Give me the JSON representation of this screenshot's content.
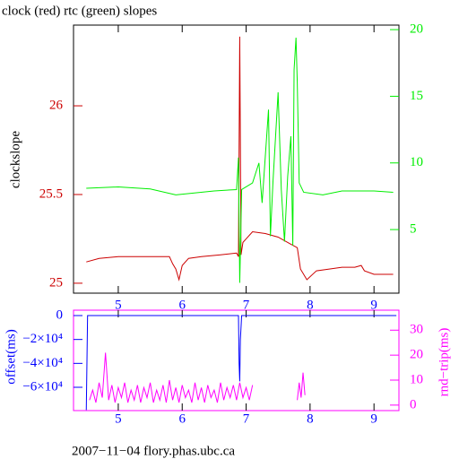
{
  "chart_data": [
    {
      "type": "line",
      "title": "clock (red) rtc (green) slopes",
      "ylabel": "clockslope",
      "xlim": [
        4.3,
        9.39
      ],
      "xticks": [
        5,
        6,
        7,
        8,
        9
      ],
      "ylim": [
        24.944,
        26.455
      ],
      "yticks": [
        25,
        25.5,
        26
      ],
      "y2lim": [
        0.23,
        20.34
      ],
      "y2ticks": [
        5,
        10,
        15,
        20
      ],
      "series": [
        {
          "name": "clock",
          "color": "#cc0000",
          "x": [
            4.5,
            4.7,
            5.0,
            5.5,
            5.8,
            5.85,
            5.9,
            5.95,
            6.0,
            6.1,
            6.3,
            6.6,
            6.85,
            6.88,
            6.9,
            6.92,
            6.95,
            7.0,
            7.1,
            7.3,
            7.5,
            7.7,
            7.8,
            7.85,
            7.95,
            8.1,
            8.3,
            8.5,
            8.7,
            8.8,
            8.85,
            9.0,
            9.3
          ],
          "values": [
            25.12,
            25.14,
            25.15,
            25.15,
            25.15,
            25.11,
            25.08,
            25.02,
            25.1,
            25.14,
            25.15,
            25.16,
            25.17,
            25.15,
            26.39,
            25.16,
            25.23,
            25.25,
            25.29,
            25.28,
            25.26,
            25.22,
            25.2,
            25.08,
            25.02,
            25.07,
            25.08,
            25.09,
            25.09,
            25.1,
            25.07,
            25.05,
            25.05
          ]
        },
        {
          "name": "rtc",
          "color": "#00ee00",
          "axis": "y2",
          "x": [
            4.5,
            5.0,
            5.5,
            5.9,
            6.5,
            6.85,
            6.88,
            6.9,
            6.93,
            7.1,
            7.2,
            7.25,
            7.35,
            7.38,
            7.42,
            7.5,
            7.55,
            7.6,
            7.65,
            7.7,
            7.73,
            7.75,
            7.78,
            7.8,
            7.83,
            7.9,
            8.2,
            8.5,
            9.0,
            9.3
          ],
          "values": [
            8.1,
            8.2,
            8.05,
            7.6,
            7.9,
            8.0,
            10.4,
            1.0,
            8.0,
            8.5,
            10.0,
            7.0,
            14.0,
            4.5,
            8.6,
            15.3,
            8.0,
            4.1,
            9.0,
            12.0,
            3.8,
            17.0,
            19.4,
            16.0,
            8.5,
            7.8,
            7.6,
            7.9,
            7.9,
            7.8
          ]
        }
      ]
    },
    {
      "type": "line",
      "ylabel": "offset(ms)",
      "y2label": "rnd−trip(ms)",
      "xlim": [
        4.3,
        9.39
      ],
      "xticks": [
        5,
        6,
        7,
        8,
        9
      ],
      "ylim": [
        -79500,
        4500
      ],
      "yticks": [
        0,
        {
          "value": -20000,
          "label": "−2×10⁴"
        },
        {
          "value": -40000,
          "label": "−4×10⁴"
        },
        {
          "value": -60000,
          "label": "−6×10⁴"
        }
      ],
      "y2lim": [
        -2.2,
        38
      ],
      "y2ticks": [
        0,
        10,
        20,
        30
      ],
      "series": [
        {
          "name": "offset",
          "color": "#0000ff",
          "x": [
            4.5,
            4.52,
            6.88,
            6.89,
            6.9,
            6.91,
            6.93,
            9.35
          ],
          "values": [
            -79000,
            0,
            0,
            -40000,
            -55000,
            -20000,
            0,
            0
          ]
        },
        {
          "name": "rnd-trip",
          "color": "#ff00ff",
          "axis": "y2",
          "x": [
            4.55,
            4.6,
            4.65,
            4.7,
            4.75,
            4.8,
            4.85,
            4.9,
            4.95,
            5.0,
            5.05,
            5.1,
            5.15,
            5.2,
            5.25,
            5.3,
            5.35,
            5.4,
            5.45,
            5.5,
            5.55,
            5.6,
            5.65,
            5.7,
            5.75,
            5.8,
            5.85,
            5.9,
            5.95,
            6.0,
            6.05,
            6.1,
            6.15,
            6.2,
            6.25,
            6.3,
            6.35,
            6.4,
            6.45,
            6.5,
            6.55,
            6.6,
            6.65,
            6.7,
            6.75,
            6.8,
            6.85,
            6.9,
            6.95,
            7.0,
            7.05,
            7.1,
            7.45,
            7.8,
            7.83,
            7.86,
            7.89,
            7.92
          ],
          "values": [
            2,
            6,
            1,
            9,
            3,
            21,
            2,
            8,
            1,
            7,
            3,
            9,
            1,
            6,
            2,
            8,
            1,
            7,
            3,
            9,
            1,
            6,
            2,
            8,
            1,
            10,
            2,
            7,
            1,
            8,
            3,
            6,
            1,
            9,
            2,
            7,
            1,
            8,
            3,
            6,
            1,
            9,
            2,
            7,
            3,
            8,
            2,
            9,
            3,
            7,
            2,
            8,
            null,
            2,
            9,
            3,
            13,
            4
          ]
        }
      ]
    }
  ],
  "footer": "2007−11−04 flory.phas.ubc.ca"
}
